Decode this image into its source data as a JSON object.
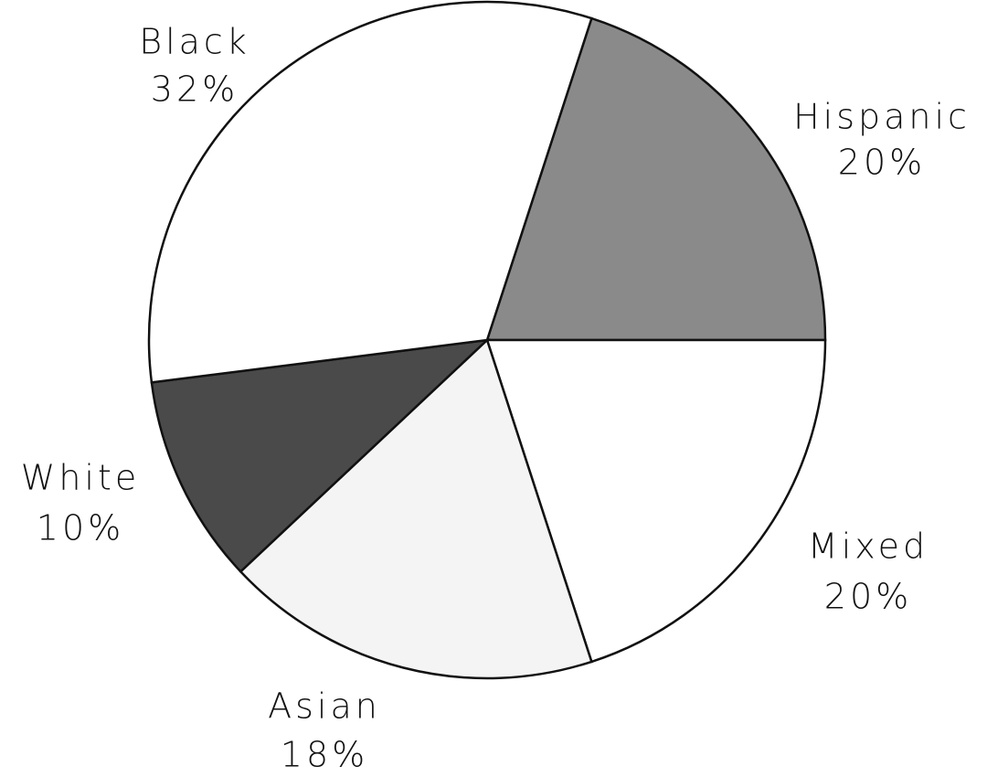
{
  "chart_data": {
    "type": "pie",
    "categories": [
      "Hispanic",
      "Mixed",
      "Asian",
      "White",
      "Black"
    ],
    "values": [
      20,
      20,
      18,
      10,
      32
    ],
    "value_labels": [
      "20%",
      "20%",
      "18%",
      "10%",
      "32%"
    ],
    "colors": [
      "#8a8a8a",
      "#ffffff",
      "#f4f4f4",
      "#4a4a4a",
      "#ffffff"
    ]
  }
}
